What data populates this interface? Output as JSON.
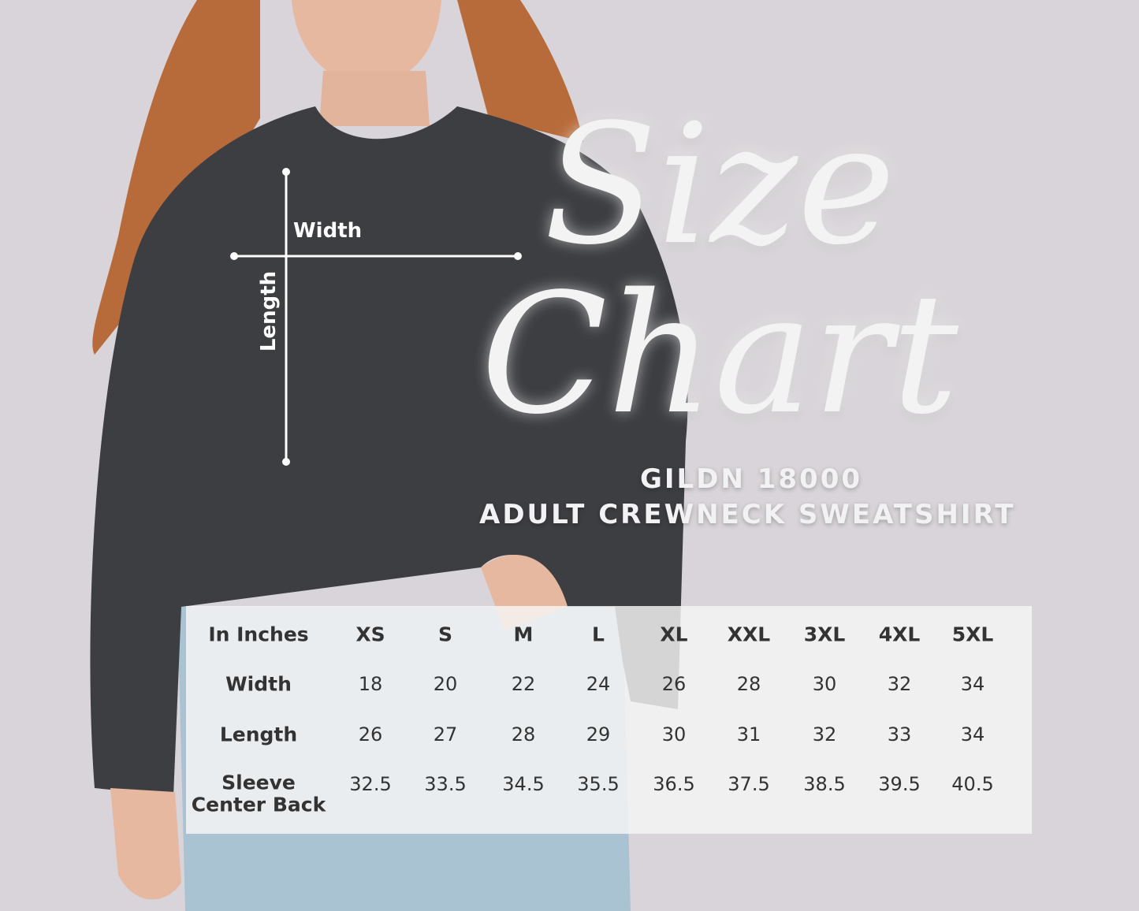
{
  "title_line1": "Size",
  "title_line2": "Chart",
  "subtitle_line1": "GILDN 18000",
  "subtitle_line2": "ADULT CREWNECK SWEATSHIRT",
  "measure_labels": {
    "width": "Width",
    "length": "Length"
  },
  "colors": {
    "background": "#d8d4d9",
    "sweatshirt": "#3d3e42",
    "jeans": "#a9c3d3",
    "hair": "#b86b3a",
    "title": "#f4f3f4",
    "table_text": "#333333"
  },
  "table": {
    "corner": "In Inches",
    "sizes": [
      "XS",
      "S",
      "M",
      "L",
      "XL",
      "XXL",
      "3XL",
      "4XL",
      "5XL"
    ],
    "rows": [
      {
        "label": "Width",
        "values": [
          "18",
          "20",
          "22",
          "24",
          "26",
          "28",
          "30",
          "32",
          "34"
        ]
      },
      {
        "label": "Length",
        "values": [
          "26",
          "27",
          "28",
          "29",
          "30",
          "31",
          "32",
          "33",
          "34"
        ]
      },
      {
        "label": "Sleeve\nCenter Back",
        "values": [
          "32.5",
          "33.5",
          "34.5",
          "35.5",
          "36.5",
          "37.5",
          "38.5",
          "39.5",
          "40.5"
        ]
      }
    ]
  }
}
